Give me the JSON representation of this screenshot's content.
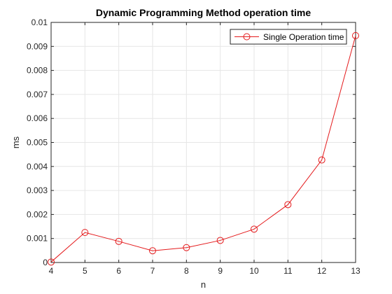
{
  "chart_data": {
    "type": "line",
    "title": "Dynamic Programming Method operation time",
    "xlabel": "n",
    "ylabel": "ms",
    "xlim": [
      4,
      13
    ],
    "ylim": [
      0,
      0.01
    ],
    "x_ticks": [
      "4",
      "5",
      "6",
      "7",
      "8",
      "9",
      "10",
      "11",
      "12",
      "13"
    ],
    "y_ticks": [
      "0",
      "0.001",
      "0.002",
      "0.003",
      "0.004",
      "0.005",
      "0.006",
      "0.007",
      "0.008",
      "0.009",
      "0.01"
    ],
    "grid": true,
    "legend_position": "top-right",
    "series": [
      {
        "name": "Single Operation time",
        "color": "#e41a1c",
        "marker": "circle",
        "x": [
          4,
          5,
          6,
          7,
          8,
          9,
          10,
          11,
          12,
          13
        ],
        "y": [
          2e-05,
          0.00125,
          0.00088,
          0.00049,
          0.00062,
          0.00092,
          0.00139,
          0.00241,
          0.00427,
          0.00945
        ]
      }
    ]
  }
}
